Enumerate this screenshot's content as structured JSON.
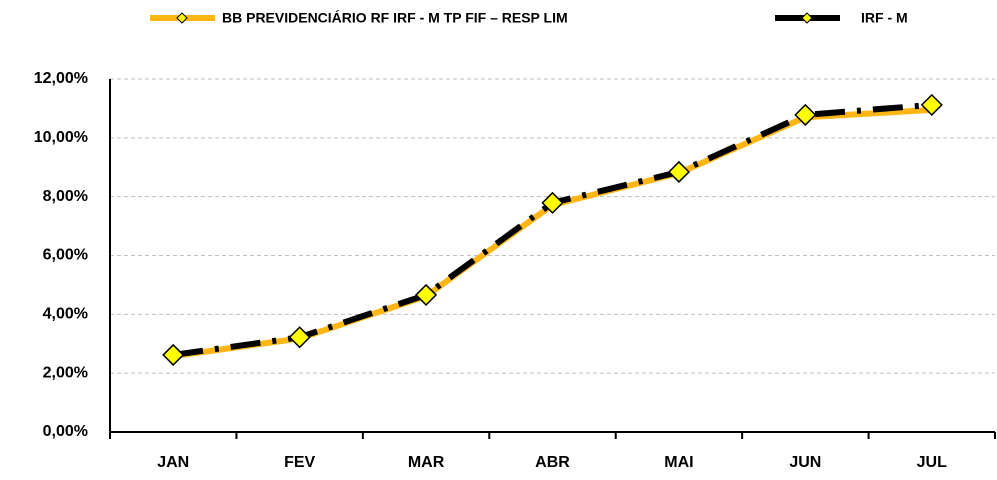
{
  "chart_data": {
    "type": "line",
    "categories": [
      "JAN",
      "FEV",
      "MAR",
      "ABR",
      "MAI",
      "JUN",
      "JUL"
    ],
    "series": [
      {
        "name": "BB PREVIDENCIÁRIO RF IRF - M TP FIF – RESP LIM",
        "color": "#ffb612",
        "values": [
          2.58,
          3.18,
          4.62,
          7.72,
          8.8,
          10.7,
          10.95
        ]
      },
      {
        "name": "IRF - M",
        "color": "#000000",
        "values": [
          2.62,
          3.22,
          4.66,
          7.79,
          8.84,
          10.78,
          11.12
        ]
      }
    ],
    "ylim": [
      0,
      12
    ],
    "yticks": [
      {
        "value": 0,
        "label": "0,00%"
      },
      {
        "value": 2,
        "label": "2,00%"
      },
      {
        "value": 4,
        "label": "4,00%"
      },
      {
        "value": 6,
        "label": "6,00%"
      },
      {
        "value": 8,
        "label": "8,00%"
      },
      {
        "value": 10,
        "label": "10,00%"
      },
      {
        "value": 12,
        "label": "12,00%"
      }
    ],
    "grid": true
  }
}
